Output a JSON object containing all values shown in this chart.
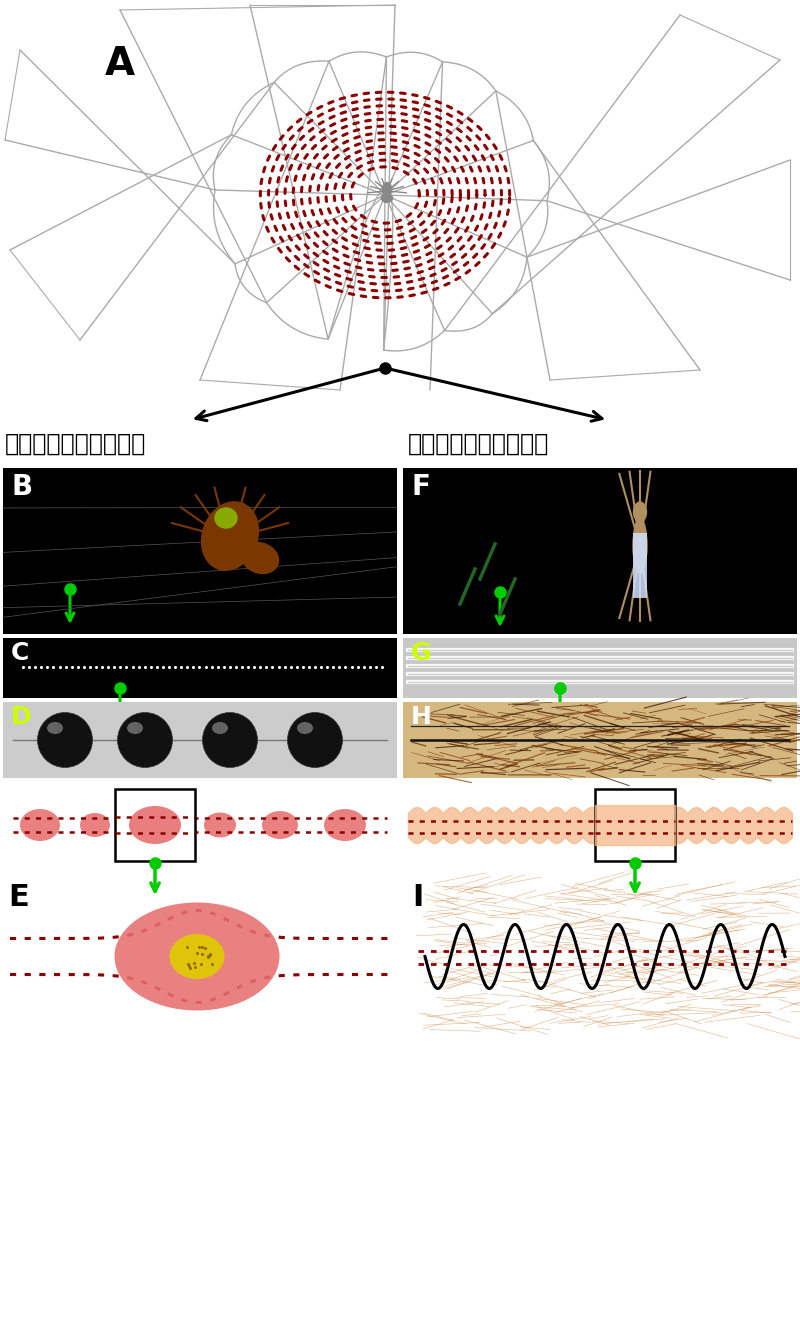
{
  "background_color": "#ffffff",
  "panel_A_label": "A",
  "panel_B_label": "B",
  "panel_C_label": "C",
  "panel_D_label": "D",
  "panel_E_label": "E",
  "panel_F_label": "F",
  "panel_G_label": "G",
  "panel_H_label": "H",
  "panel_I_label": "I",
  "left_title": "無筛疛類蜖蛛：黏珠型",
  "right_title": "有筛疛類蜖蛛：筛絲型",
  "web_color": "#aaaaaa",
  "spiral_dot_color": "#8B0000",
  "arrow_color": "#000000",
  "green_arrow_color": "#00cc00",
  "green_dot_color": "#00cc00",
  "blob_color": "#e87070",
  "cribellar_color": "#f5b888",
  "axial_line_color": "#8B0000",
  "core_color": "#ddcc00",
  "coil_line_color": "#000000",
  "fiber_color": "#cc8844"
}
